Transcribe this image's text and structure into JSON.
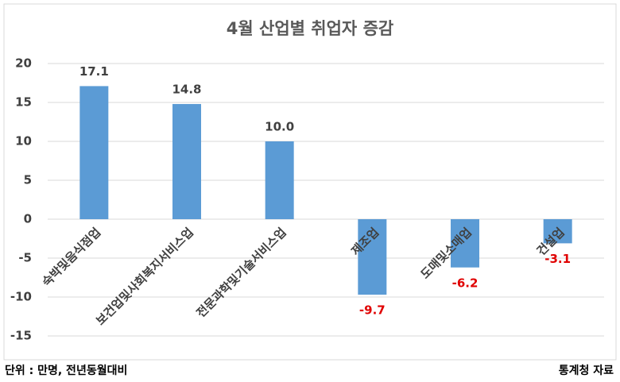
{
  "chart_data": {
    "type": "bar",
    "title": "4월 산업별 취업자 증감",
    "categories": [
      "숙박및음식점업",
      "보건업및사회복지서비스업",
      "전문과학및기술서비스업",
      "제조업",
      "도매및소매업",
      "건설업"
    ],
    "values": [
      17.1,
      14.8,
      10.0,
      -9.7,
      -6.2,
      -3.1
    ],
    "value_labels": [
      "17.1",
      "14.8",
      "10.0",
      "-9.7",
      "-6.2",
      "-3.1"
    ],
    "color": "#5b9bd5",
    "ylim": [
      -15,
      20
    ],
    "yticks": [
      -15,
      -10,
      -5,
      0,
      5,
      10,
      15,
      20
    ],
    "grid": true,
    "unit_note": "단위 : 만명, 전년동월대비",
    "source": "통계청 자료"
  }
}
